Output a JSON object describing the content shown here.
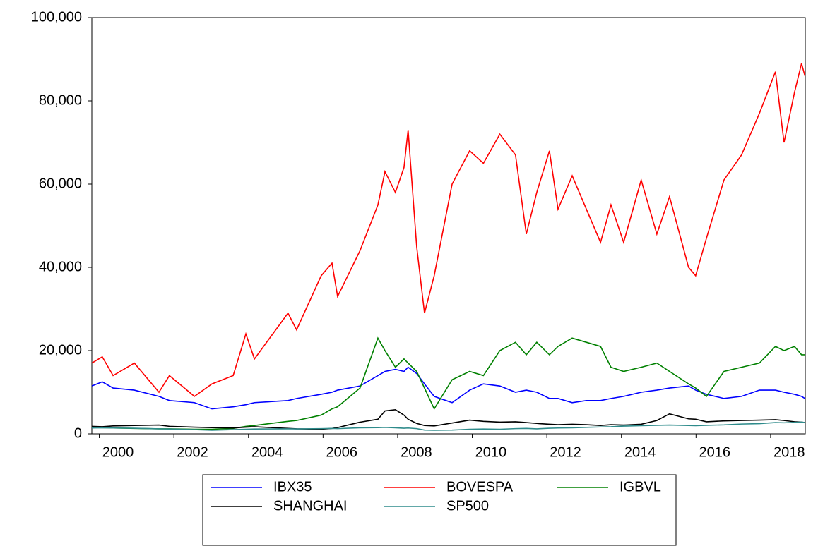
{
  "chart_data": {
    "type": "line",
    "x": [
      1999.8,
      2000.08,
      2000.37,
      2000.94,
      2001.6,
      2001.88,
      2002.55,
      2003.02,
      2003.59,
      2003.93,
      2004.16,
      2005.06,
      2005.29,
      2005.95,
      2006.24,
      2006.39,
      2006.99,
      2007.47,
      2007.66,
      2007.94,
      2008.17,
      2008.28,
      2008.51,
      2008.72,
      2008.98,
      2009.46,
      2009.93,
      2010.3,
      2010.74,
      2011.16,
      2011.45,
      2011.73,
      2012.07,
      2012.3,
      2012.68,
      2013.06,
      2013.44,
      2013.72,
      2014.06,
      2014.53,
      2014.95,
      2015.29,
      2015.8,
      2015.99,
      2016.28,
      2016.75,
      2017.22,
      2017.7,
      2018.13,
      2018.36,
      2018.64,
      2018.83,
      2018.92
    ],
    "series": [
      {
        "name": "IBX35",
        "color": "#0000ff",
        "values": [
          11500,
          12500,
          11000,
          10500,
          9000,
          8000,
          7500,
          6000,
          6500,
          7000,
          7500,
          8000,
          8500,
          9500,
          10000,
          10500,
          11500,
          14000,
          15000,
          15500,
          15000,
          16000,
          14500,
          12000,
          9000,
          7500,
          10500,
          12000,
          11500,
          10000,
          10500,
          10000,
          8500,
          8500,
          7500,
          8000,
          8000,
          8500,
          9000,
          10000,
          10500,
          11000,
          11500,
          10500,
          9500,
          8500,
          9000,
          10500,
          10500,
          10000,
          9500,
          9000,
          8500
        ]
      },
      {
        "name": "BOVESPA",
        "color": "#ff0000",
        "values": [
          17000,
          18500,
          14000,
          17000,
          10000,
          14000,
          9000,
          12000,
          14000,
          24000,
          18000,
          29000,
          25000,
          38000,
          41000,
          33000,
          44000,
          55000,
          63000,
          58000,
          64000,
          73000,
          45000,
          29000,
          38000,
          60000,
          68000,
          65000,
          72000,
          67000,
          48000,
          58000,
          68000,
          54000,
          62000,
          54000,
          46000,
          55000,
          46000,
          61000,
          48000,
          57000,
          40000,
          38000,
          47000,
          61000,
          67000,
          77000,
          87000,
          70000,
          82000,
          89000,
          86000
        ]
      },
      {
        "name": "IGBVL",
        "color": "#008000",
        "values": [
          1500,
          1500,
          1400,
          1300,
          1200,
          1200,
          1100,
          1100,
          1300,
          1800,
          2000,
          3000,
          3200,
          4500,
          6000,
          6500,
          11000,
          23000,
          20000,
          16000,
          18000,
          17000,
          15000,
          11000,
          6000,
          13000,
          15000,
          14000,
          20000,
          22000,
          19000,
          22000,
          19000,
          21000,
          23000,
          22000,
          21000,
          16000,
          15000,
          16000,
          17000,
          15000,
          12000,
          11000,
          9000,
          15000,
          16000,
          17000,
          21000,
          20000,
          21000,
          19000,
          19000
        ]
      },
      {
        "name": "SHANGHAI",
        "color": "#000000",
        "values": [
          1800,
          1700,
          1900,
          2000,
          2100,
          1800,
          1600,
          1500,
          1400,
          1600,
          1700,
          1300,
          1200,
          1100,
          1300,
          1500,
          2800,
          3500,
          5500,
          5800,
          4500,
          3500,
          2500,
          2000,
          1900,
          2600,
          3300,
          3000,
          2800,
          2900,
          2700,
          2500,
          2300,
          2200,
          2300,
          2200,
          2000,
          2200,
          2100,
          2300,
          3200,
          4800,
          3600,
          3500,
          2900,
          3100,
          3200,
          3300,
          3400,
          3200,
          2900,
          2800,
          2700
        ]
      },
      {
        "name": "SP500",
        "color": "#2e8b8b",
        "values": [
          1400,
          1450,
          1400,
          1350,
          1200,
          1150,
          1000,
          850,
          1000,
          1100,
          1150,
          1200,
          1180,
          1250,
          1300,
          1250,
          1450,
          1500,
          1550,
          1450,
          1350,
          1400,
          1250,
          900,
          850,
          900,
          1100,
          1150,
          1100,
          1250,
          1300,
          1200,
          1350,
          1400,
          1450,
          1550,
          1650,
          1700,
          1850,
          1950,
          2050,
          2100,
          2000,
          1950,
          2050,
          2150,
          2350,
          2450,
          2700,
          2650,
          2750,
          2800,
          2700
        ]
      }
    ],
    "xlim": [
      1999.8,
      2018.93
    ],
    "xticks": [
      2000,
      2002,
      2004,
      2006,
      2008,
      2010,
      2012,
      2014,
      2016,
      2018
    ],
    "ylim": [
      0,
      100000
    ],
    "yticks": [
      0,
      {
        "value": 20000,
        "label": "20,000"
      },
      {
        "value": 40000,
        "label": "40,000"
      },
      {
        "value": 60000,
        "label": "60,000"
      },
      {
        "value": 80000,
        "label": "80,000"
      },
      {
        "value": 100000,
        "label": "100,000"
      }
    ],
    "grid": false,
    "legend": "bottom"
  }
}
